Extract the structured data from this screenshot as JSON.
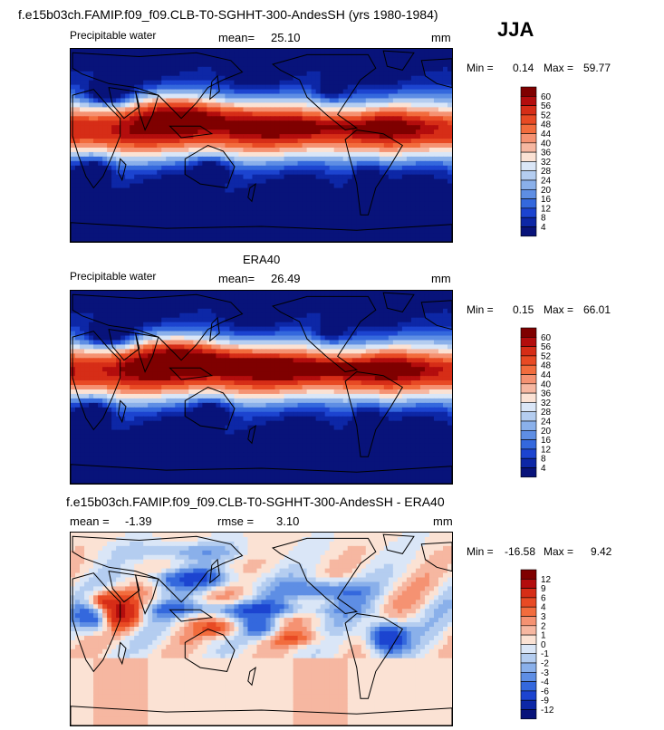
{
  "header": {
    "title": "f.e15b03ch.FAMIP.f09_f09.CLB-T0-SGHHT-300-AndesSH (yrs 1980-1984)",
    "season": "JJA"
  },
  "chart_data": [
    {
      "type": "heatmap",
      "variable": "Precipitable water",
      "mean_label": "mean=",
      "mean": "25.10",
      "units": "mm",
      "min_label": "Min =",
      "min": "0.14",
      "max_label": "Max =",
      "max": "59.77",
      "colorbar_levels": [
        "60",
        "56",
        "52",
        "48",
        "44",
        "40",
        "36",
        "32",
        "28",
        "24",
        "20",
        "16",
        "12",
        "8",
        "4"
      ],
      "colorbar_colors": [
        "#7f0000",
        "#b30d0d",
        "#d62d17",
        "#e84a24",
        "#f26c3d",
        "#f59272",
        "#f6b7a1",
        "#fbe2d4",
        "#dae6f7",
        "#b4cdf0",
        "#8ab0ea",
        "#5e8ee4",
        "#3468dd",
        "#1c44d0",
        "#0d27a6",
        "#08137a"
      ]
    },
    {
      "type": "heatmap",
      "panel_title": "ERA40",
      "variable": "Precipitable water",
      "mean_label": "mean=",
      "mean": "26.49",
      "units": "mm",
      "min_label": "Min =",
      "min": "0.15",
      "max_label": "Max =",
      "max": "66.01",
      "colorbar_levels": [
        "60",
        "56",
        "52",
        "48",
        "44",
        "40",
        "36",
        "32",
        "28",
        "24",
        "20",
        "16",
        "12",
        "8",
        "4"
      ],
      "colorbar_colors": [
        "#7f0000",
        "#b30d0d",
        "#d62d17",
        "#e84a24",
        "#f26c3d",
        "#f59272",
        "#f6b7a1",
        "#fbe2d4",
        "#dae6f7",
        "#b4cdf0",
        "#8ab0ea",
        "#5e8ee4",
        "#3468dd",
        "#1c44d0",
        "#0d27a6",
        "#08137a"
      ]
    },
    {
      "type": "heatmap",
      "panel_title": "f.e15b03ch.FAMIP.f09_f09.CLB-T0-SGHHT-300-AndesSH - ERA40",
      "mean_label": "mean =",
      "mean": "-1.39",
      "rmse_label": "rmse =",
      "rmse": "3.10",
      "units": "mm",
      "min_label": "Min =",
      "min": "-16.58",
      "max_label": "Max =",
      "max": "9.42",
      "colorbar_levels": [
        "12",
        "9",
        "6",
        "4",
        "3",
        "2",
        "1",
        "0",
        "-1",
        "-2",
        "-3",
        "-4",
        "-6",
        "-9",
        "-12"
      ],
      "colorbar_colors": [
        "#7f0000",
        "#b30d0d",
        "#d62d17",
        "#e84a24",
        "#f26c3d",
        "#f59272",
        "#f6b7a1",
        "#fbe2d4",
        "#dae6f7",
        "#b4cdf0",
        "#8ab0ea",
        "#5e8ee4",
        "#3468dd",
        "#1c44d0",
        "#0d27a6",
        "#08137a"
      ]
    }
  ]
}
